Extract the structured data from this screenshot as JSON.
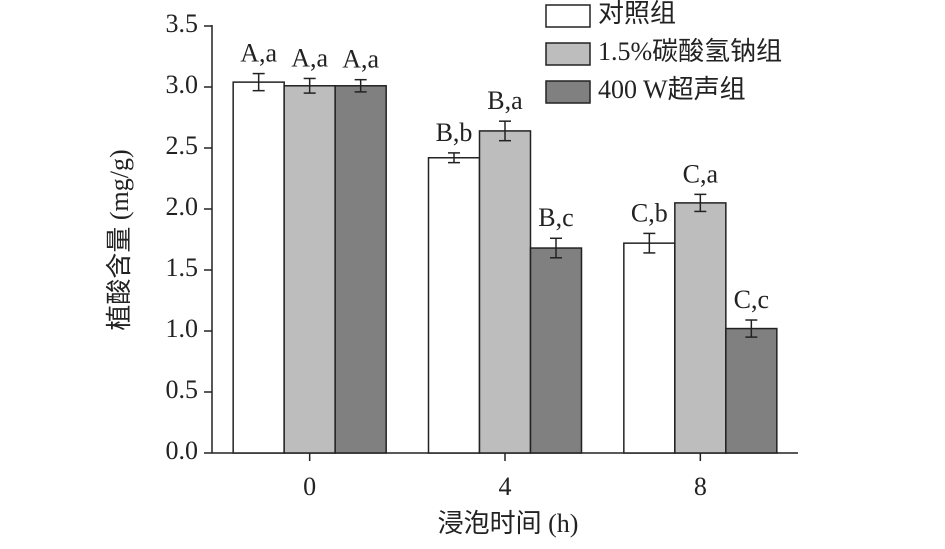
{
  "chart_data": {
    "type": "bar",
    "x_label": "浸泡时间 (h)",
    "y_label": "植酸含量 (mg/g)",
    "categories": [
      "0",
      "4",
      "8"
    ],
    "series": [
      {
        "name": "对照组",
        "color": "#ffffff",
        "values": [
          3.04,
          2.42,
          1.72
        ],
        "errors": [
          0.07,
          0.04,
          0.08
        ],
        "annotations": [
          "A,a",
          "B,b",
          "C,b"
        ]
      },
      {
        "name": "1.5%碳酸氢钠组",
        "color": "#bdbdbd",
        "values": [
          3.01,
          2.64,
          2.05
        ],
        "errors": [
          0.06,
          0.08,
          0.07
        ],
        "annotations": [
          "A,a",
          "B,a",
          "C,a"
        ]
      },
      {
        "name": "400 W超声组",
        "color": "#808080",
        "values": [
          3.01,
          1.68,
          1.02
        ],
        "errors": [
          0.05,
          0.08,
          0.07
        ],
        "annotations": [
          "A,a",
          "B,c",
          "C,c"
        ]
      }
    ],
    "ylim": [
      0,
      3.5
    ],
    "yticks": [
      {
        "value": 0,
        "label": "0.0"
      },
      0.5,
      {
        "value": 1,
        "label": "1.0"
      },
      1.5,
      {
        "value": 2,
        "label": "2.0"
      },
      2.5,
      {
        "value": 3,
        "label": "3.0"
      },
      3.5
    ],
    "legend": "top-right"
  }
}
